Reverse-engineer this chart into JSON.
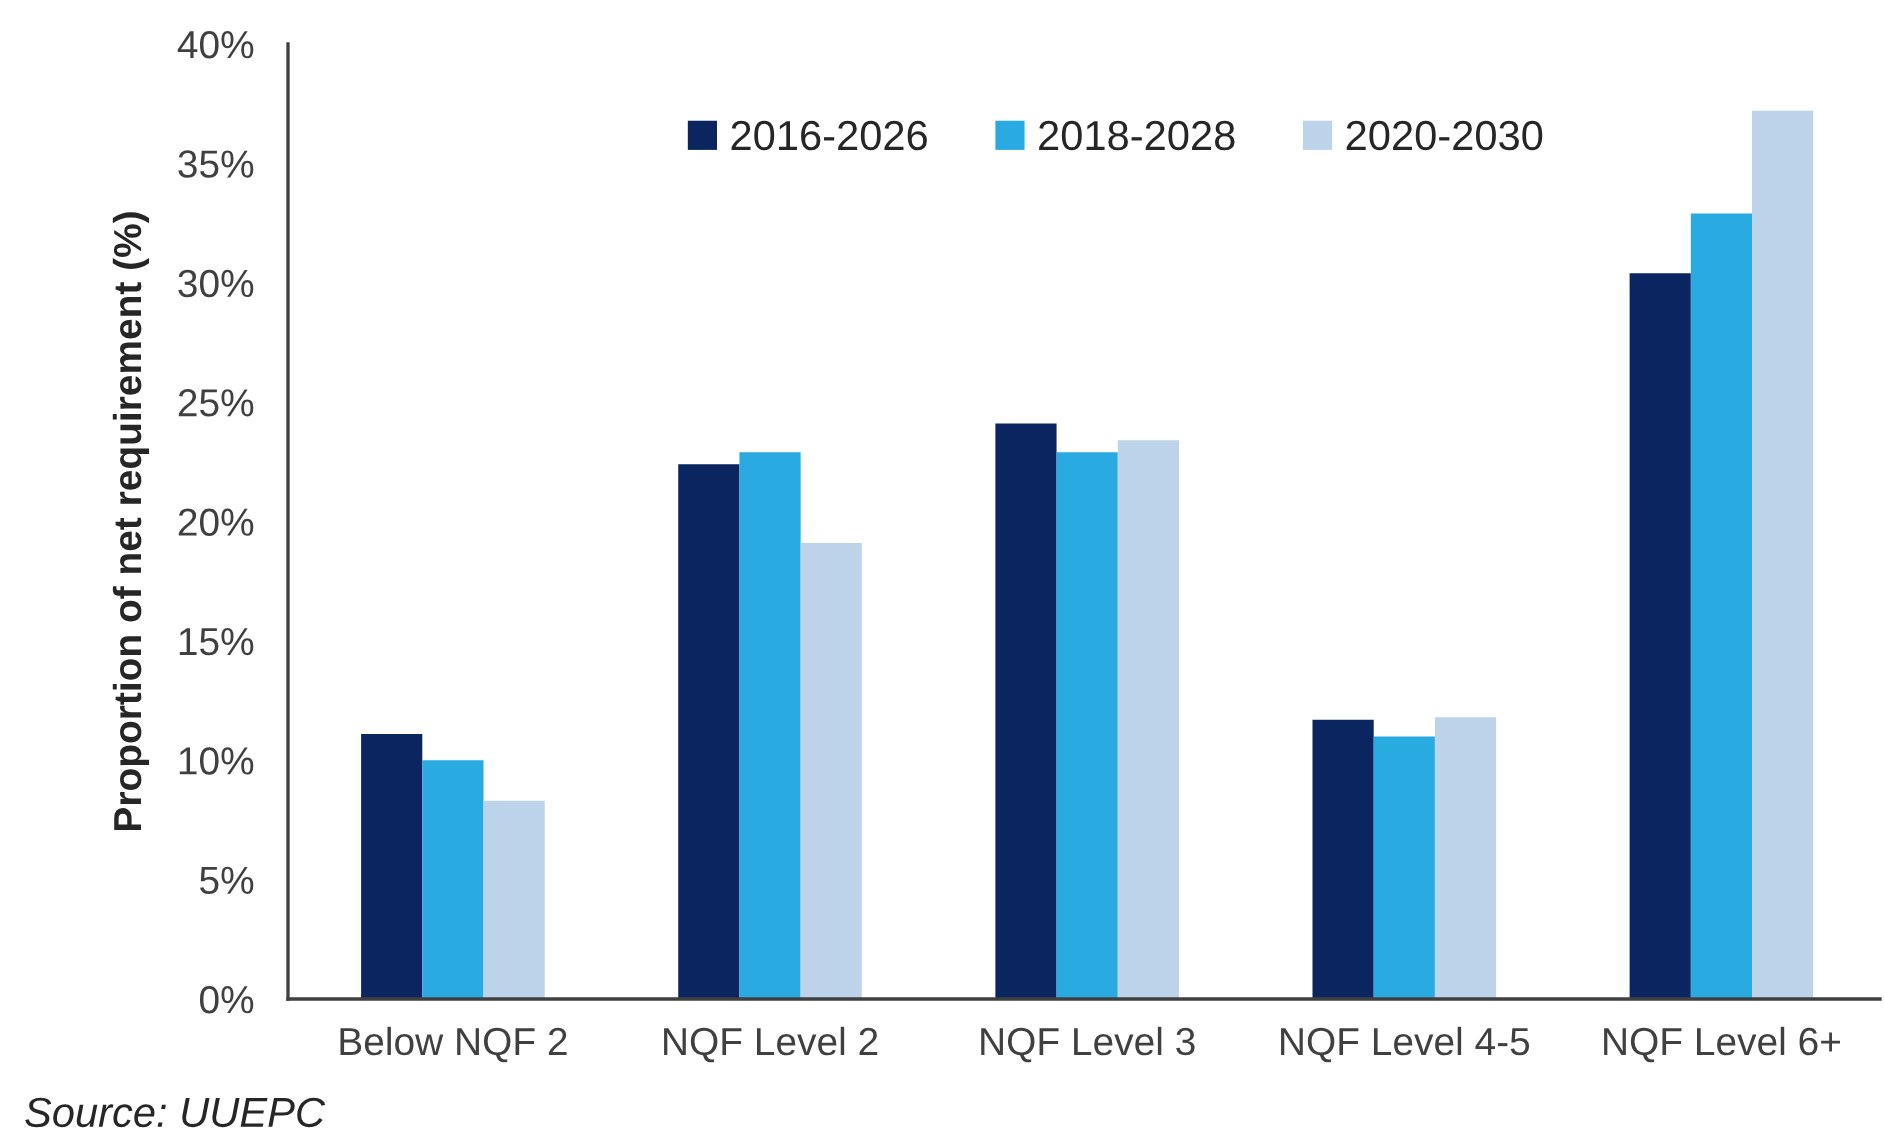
{
  "chart_data": {
    "type": "bar",
    "categories": [
      "Below NQF 2",
      "NQF Level 2",
      "NQF Level 3",
      "NQF Level 4-5",
      "NQF Level 6+"
    ],
    "series": [
      {
        "name": "2016-2026",
        "color": "#0b2560",
        "values": [
          11.1,
          22.4,
          24.1,
          11.7,
          30.4
        ]
      },
      {
        "name": "2018-2028",
        "color": "#29abe2",
        "values": [
          10.0,
          22.9,
          22.9,
          11.0,
          32.9
        ]
      },
      {
        "name": "2020-2030",
        "color": "#bcd3ea",
        "values": [
          8.3,
          19.1,
          23.4,
          11.8,
          37.2
        ]
      }
    ],
    "ylabel": "Proportion of net requirement (%)",
    "ylim": [
      0,
      40
    ],
    "yticks": [
      {
        "value": 0,
        "label": "0%"
      },
      {
        "value": 5,
        "label": "5%"
      },
      {
        "value": 10,
        "label": "10%"
      },
      {
        "value": 15,
        "label": "15%"
      },
      {
        "value": 20,
        "label": "20%"
      },
      {
        "value": 25,
        "label": "25%"
      },
      {
        "value": 30,
        "label": "30%"
      },
      {
        "value": 35,
        "label": "35%"
      },
      {
        "value": 40,
        "label": "40%"
      }
    ],
    "grid": false,
    "legend": "top",
    "annotations": [
      "Source: UUEPC"
    ]
  }
}
